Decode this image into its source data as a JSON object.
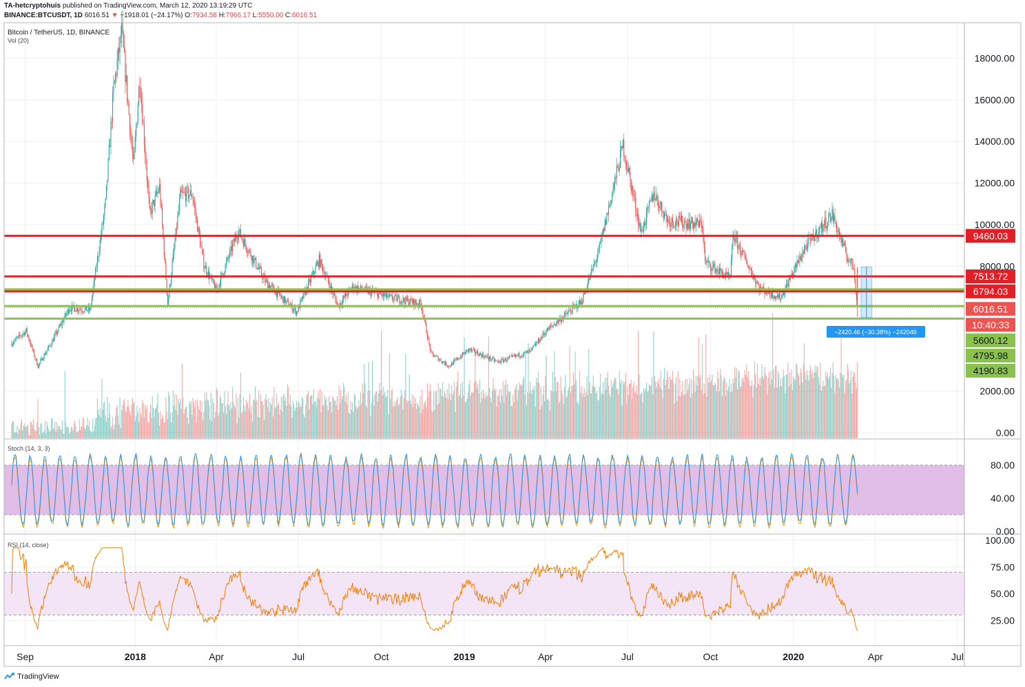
{
  "header": {
    "author": "TA-hetcryptohuis",
    "published": "published on TradingView.com, March 12, 2020 13:19:29 UTC",
    "symbol": "BINANCE:BTCUSDT, 1D",
    "last": "6016.51",
    "change": "−1918.01 (−24.17%)",
    "o_label": "O:",
    "o": "7934.58",
    "h_label": "H:",
    "h": "7966.17",
    "l_label": "L:",
    "l": "5550.00",
    "c_label": "C:",
    "c": "6016.51"
  },
  "footer": {
    "brand": "TradingView",
    "logo_icon": "tradingview-logo-icon"
  },
  "colors": {
    "up": "#26a69a",
    "down": "#ef5350",
    "resistance": "#e31e24",
    "support": "#8bc34a",
    "stoch_band": "#e1bee7",
    "rsi_band": "#f3e5f5",
    "rsi_line": "#f57c00",
    "stoch_k": "#2196f3",
    "stoch_d": "#ff9800",
    "measure": "#2196f3"
  },
  "chart_data": [
    {
      "type": "candlestick",
      "pane": "price",
      "title": "Bitcoin / TetherUS, 1D, BINANCE",
      "indicator": "Vol (20)",
      "x_ticks": [
        "Sep",
        "2018",
        "Apr",
        "Jul",
        "Oct",
        "2019",
        "Apr",
        "Jul",
        "Oct",
        "2020",
        "Apr",
        "Jul"
      ],
      "y_ticks": [
        "18000.00",
        "16000.00",
        "14000.00",
        "12000.00",
        "10000.00",
        "8000.00",
        "2000.00",
        "0.00"
      ],
      "ylim": [
        0,
        19500
      ],
      "resistance_levels": [
        "9460.03",
        "7513.72",
        "6794.03"
      ],
      "support_levels": [
        "5600.12",
        "4795.98",
        "4190.83"
      ],
      "current_price": "6016.51",
      "countdown": "10:40:33",
      "measure_label": "−2420.46 (−30.38%) −242046",
      "path_points": [
        [
          "2017-08-17",
          4300
        ],
        [
          "2017-09-02",
          4900
        ],
        [
          "2017-09-15",
          3200
        ],
        [
          "2017-10-01",
          4400
        ],
        [
          "2017-10-20",
          6000
        ],
        [
          "2017-11-12",
          5900
        ],
        [
          "2017-11-29",
          11000
        ],
        [
          "2017-12-08",
          16500
        ],
        [
          "2017-12-17",
          19300
        ],
        [
          "2017-12-30",
          12800
        ],
        [
          "2018-01-06",
          17100
        ],
        [
          "2018-01-17",
          10500
        ],
        [
          "2018-01-28",
          11800
        ],
        [
          "2018-02-06",
          6200
        ],
        [
          "2018-02-20",
          11400
        ],
        [
          "2018-03-05",
          11500
        ],
        [
          "2018-03-18",
          8100
        ],
        [
          "2018-04-01",
          6800
        ],
        [
          "2018-04-25",
          9700
        ],
        [
          "2018-05-25",
          7300
        ],
        [
          "2018-06-12",
          6500
        ],
        [
          "2018-06-29",
          5800
        ],
        [
          "2018-07-24",
          8300
        ],
        [
          "2018-08-14",
          6100
        ],
        [
          "2018-08-30",
          7000
        ],
        [
          "2018-10-10",
          6500
        ],
        [
          "2018-11-14",
          6200
        ],
        [
          "2018-11-25",
          3800
        ],
        [
          "2018-12-15",
          3200
        ],
        [
          "2019-01-06",
          4000
        ],
        [
          "2019-02-07",
          3400
        ],
        [
          "2019-03-15",
          3900
        ],
        [
          "2019-04-02",
          4900
        ],
        [
          "2019-05-11",
          6300
        ],
        [
          "2019-05-30",
          8700
        ],
        [
          "2019-06-26",
          13800
        ],
        [
          "2019-07-16",
          9600
        ],
        [
          "2019-07-30",
          11500
        ],
        [
          "2019-08-15",
          10200
        ],
        [
          "2019-09-22",
          10000
        ],
        [
          "2019-09-25",
          8200
        ],
        [
          "2019-10-23",
          7400
        ],
        [
          "2019-10-26",
          9500
        ],
        [
          "2019-11-25",
          6900
        ],
        [
          "2019-12-18",
          6500
        ],
        [
          "2020-01-14",
          8900
        ],
        [
          "2020-02-13",
          10500
        ],
        [
          "2020-02-29",
          8500
        ],
        [
          "2020-03-08",
          7934
        ],
        [
          "2020-03-12",
          6016
        ]
      ]
    },
    {
      "type": "line",
      "pane": "stoch",
      "title": "Stoch (14, 3, 3)",
      "y_ticks": [
        "80.00",
        "40.00",
        "0.00"
      ],
      "ylim": [
        0,
        100
      ],
      "band": [
        20,
        80
      ]
    },
    {
      "type": "line",
      "pane": "rsi",
      "title": "RSI (14, close)",
      "y_ticks": [
        "100.00",
        "75.00",
        "50.00",
        "25.00"
      ],
      "ylim": [
        0,
        100
      ],
      "band": [
        30,
        70
      ]
    }
  ]
}
